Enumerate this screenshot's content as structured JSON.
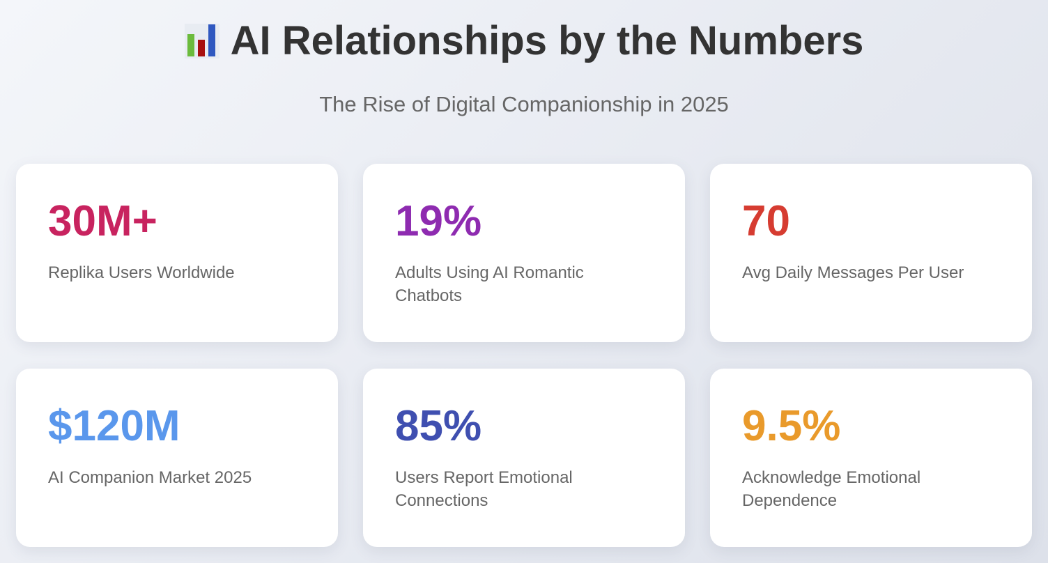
{
  "header": {
    "icon": "bar-chart-icon",
    "title": "AI Relationships by the Numbers",
    "subtitle": "The Rise of Digital Companionship in 2025"
  },
  "stats": [
    {
      "value": "30M+",
      "label": "Replika Users Worldwide",
      "color": "#c8235f"
    },
    {
      "value": "19%",
      "label": "Adults Using AI Romantic Chatbots",
      "color": "#8e2bb0"
    },
    {
      "value": "70",
      "label": "Avg Daily Messages Per User",
      "color": "#d63c31"
    },
    {
      "value": "$120M",
      "label": "AI Companion Market 2025",
      "color": "#5a97ec"
    },
    {
      "value": "85%",
      "label": "Users Report Emotional Connections",
      "color": "#3f4fb0"
    },
    {
      "value": "9.5%",
      "label": "Acknowledge Emotional Dependence",
      "color": "#e99a2b"
    }
  ]
}
